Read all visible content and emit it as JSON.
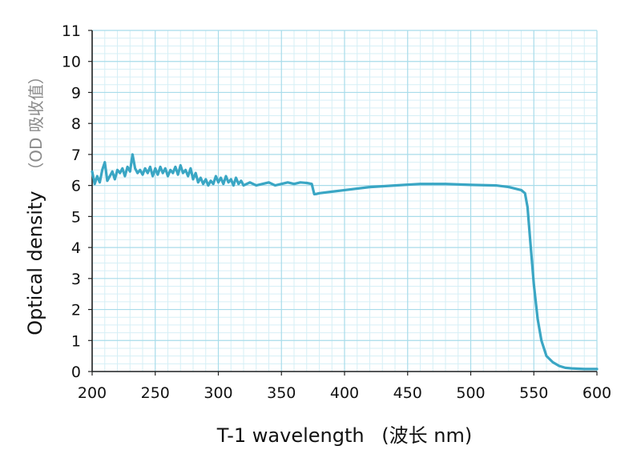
{
  "chart_data": {
    "type": "line",
    "title": "",
    "xlabel": "T-1 wavelength",
    "xlabel_unit": "(波长 nm)",
    "ylabel": "Optical density",
    "ylabel_unit": "（OD 吸收值）",
    "xlim": [
      200,
      600
    ],
    "ylim": [
      0,
      11
    ],
    "xticks": [
      "200",
      "250",
      "300",
      "350",
      "400",
      "450",
      "500",
      "550",
      "600"
    ],
    "yticks": [
      "0",
      "1",
      "2",
      "3",
      "4",
      "5",
      "6",
      "7",
      "8",
      "9",
      "10",
      "11"
    ],
    "grid": true,
    "colors": {
      "line": "#3aa6c4",
      "grid_major": "#a8dcea",
      "grid_minor": "#d6eff6",
      "axis": "#222222"
    },
    "series": [
      {
        "name": "T-1",
        "x": [
          200,
          202,
          204,
          206,
          208,
          210,
          212,
          214,
          216,
          218,
          220,
          222,
          224,
          226,
          228,
          230,
          232,
          234,
          236,
          238,
          240,
          242,
          244,
          246,
          248,
          250,
          252,
          254,
          256,
          258,
          260,
          262,
          264,
          266,
          268,
          270,
          272,
          274,
          276,
          278,
          280,
          282,
          284,
          286,
          288,
          290,
          292,
          294,
          296,
          298,
          300,
          302,
          304,
          306,
          308,
          310,
          312,
          314,
          316,
          318,
          320,
          325,
          330,
          335,
          340,
          345,
          350,
          355,
          360,
          365,
          370,
          374,
          376,
          378,
          380,
          390,
          400,
          420,
          440,
          460,
          480,
          500,
          520,
          530,
          540,
          543,
          545,
          547,
          550,
          553,
          556,
          560,
          565,
          570,
          575,
          580,
          590,
          600
        ],
        "values": [
          6.45,
          6.05,
          6.3,
          6.1,
          6.5,
          6.75,
          6.15,
          6.3,
          6.45,
          6.2,
          6.5,
          6.4,
          6.55,
          6.3,
          6.6,
          6.45,
          7.0,
          6.55,
          6.4,
          6.5,
          6.35,
          6.55,
          6.4,
          6.6,
          6.3,
          6.55,
          6.35,
          6.6,
          6.4,
          6.55,
          6.3,
          6.5,
          6.4,
          6.6,
          6.35,
          6.65,
          6.4,
          6.5,
          6.3,
          6.55,
          6.2,
          6.4,
          6.1,
          6.25,
          6.05,
          6.2,
          6.0,
          6.15,
          6.05,
          6.3,
          6.1,
          6.25,
          6.05,
          6.3,
          6.1,
          6.2,
          6.0,
          6.25,
          6.05,
          6.15,
          6.0,
          6.1,
          6.0,
          6.05,
          6.1,
          6.0,
          6.05,
          6.1,
          6.05,
          6.1,
          6.08,
          6.05,
          5.72,
          5.73,
          5.75,
          5.8,
          5.85,
          5.95,
          6.0,
          6.05,
          6.05,
          6.02,
          6.0,
          5.95,
          5.85,
          5.75,
          5.3,
          4.3,
          2.8,
          1.7,
          1.0,
          0.5,
          0.3,
          0.18,
          0.12,
          0.1,
          0.08,
          0.08
        ]
      }
    ]
  }
}
